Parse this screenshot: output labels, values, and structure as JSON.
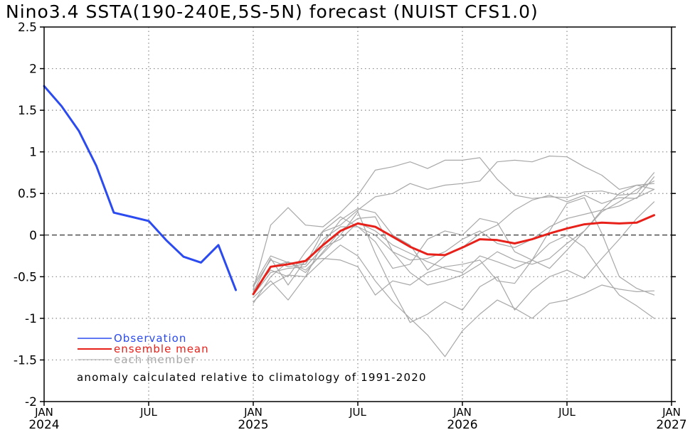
{
  "chart_data": {
    "type": "line",
    "title": "Nino3.4 SSTA(190-240E,5S-5N) forecast (NUIST CFS1.0)",
    "ylim": [
      -2,
      2.5
    ],
    "yticks": [
      -2,
      -1.5,
      -1,
      -0.5,
      0,
      0.5,
      1,
      1.5,
      2,
      2.5
    ],
    "ytick_labels": [
      "-2",
      "-1.5",
      "-1",
      "-0.5",
      "0",
      "0.5",
      "1",
      "1.5",
      "2",
      "2.5"
    ],
    "xlim": [
      "2024-01",
      "2027-01"
    ],
    "xticks": [
      {
        "date": "2024-01",
        "month": "JAN",
        "year": "2024"
      },
      {
        "date": "2024-07",
        "month": "JUL",
        "year": ""
      },
      {
        "date": "2025-01",
        "month": "JAN",
        "year": "2025"
      },
      {
        "date": "2025-07",
        "month": "JUL",
        "year": ""
      },
      {
        "date": "2026-01",
        "month": "JAN",
        "year": "2026"
      },
      {
        "date": "2026-07",
        "month": "JUL",
        "year": ""
      },
      {
        "date": "2027-01",
        "month": "JAN",
        "year": "2027"
      }
    ],
    "grid": true,
    "zero_line": true,
    "legend_position": "bottom-left",
    "annotation": "anomaly calculated relative to climatology of 1991-2020",
    "observation": {
      "name": "Observation",
      "color": "#2b4bf0",
      "x": [
        "2024-01",
        "2024-02",
        "2024-03",
        "2024-04",
        "2024-05",
        "2024-06",
        "2024-07",
        "2024-08",
        "2024-09",
        "2024-10",
        "2024-11",
        "2024-12"
      ],
      "values": [
        1.79,
        1.55,
        1.25,
        0.83,
        0.27,
        0.22,
        0.17,
        -0.06,
        -0.26,
        -0.33,
        -0.12,
        -0.66
      ]
    },
    "ensemble_mean": {
      "name": "ensemble mean",
      "color": "#e8201a",
      "x": [
        "2025-01",
        "2025-02",
        "2025-03",
        "2025-04",
        "2025-05",
        "2025-06",
        "2025-07",
        "2025-08",
        "2025-09",
        "2025-10",
        "2025-11",
        "2025-12",
        "2026-01",
        "2026-02",
        "2026-03",
        "2026-04",
        "2026-05",
        "2026-06",
        "2026-07",
        "2026-08",
        "2026-09",
        "2026-10",
        "2026-11",
        "2026-12"
      ],
      "values": [
        -0.71,
        -0.38,
        -0.35,
        -0.31,
        -0.12,
        0.05,
        0.14,
        0.1,
        -0.02,
        -0.14,
        -0.23,
        -0.24,
        -0.15,
        -0.05,
        -0.06,
        -0.1,
        -0.05,
        0.02,
        0.08,
        0.13,
        0.15,
        0.14,
        0.15,
        0.24
      ]
    },
    "members": {
      "name": "each member",
      "color": "#a8a8a8",
      "x": [
        "2025-01",
        "2025-02",
        "2025-03",
        "2025-04",
        "2025-05",
        "2025-06",
        "2025-07",
        "2025-08",
        "2025-09",
        "2025-10",
        "2025-11",
        "2025-12",
        "2026-01",
        "2026-02",
        "2026-03",
        "2026-04",
        "2026-05",
        "2026-06",
        "2026-07",
        "2026-08",
        "2026-09",
        "2026-10",
        "2026-11",
        "2026-12"
      ],
      "series": [
        [
          -0.65,
          0.12,
          0.33,
          0.12,
          0.1,
          0.27,
          0.48,
          0.78,
          0.82,
          0.88,
          0.8,
          0.9,
          0.9,
          0.93,
          0.67,
          0.48,
          0.44,
          0.46,
          0.45,
          0.52,
          0.53,
          0.48,
          0.5,
          0.75
        ],
        [
          -0.6,
          -0.25,
          -0.33,
          -0.35,
          0.04,
          0.12,
          0.3,
          0.46,
          0.5,
          0.62,
          0.55,
          0.6,
          0.62,
          0.65,
          0.88,
          0.9,
          0.88,
          0.95,
          0.94,
          0.82,
          0.72,
          0.55,
          0.6,
          0.62
        ],
        [
          -0.8,
          -0.6,
          -0.48,
          -0.5,
          -0.1,
          0.18,
          0.32,
          0.27,
          0.0,
          -0.12,
          -0.42,
          -0.25,
          -0.15,
          0.02,
          0.12,
          0.3,
          0.42,
          0.48,
          0.4,
          0.48,
          0.38,
          0.45,
          0.44,
          0.7
        ],
        [
          -0.7,
          -0.38,
          -0.32,
          -0.42,
          -0.22,
          0.0,
          0.28,
          -0.22,
          -0.66,
          -1.05,
          -0.95,
          -0.8,
          -0.9,
          -0.62,
          -0.5,
          -0.9,
          -0.66,
          -0.5,
          -0.42,
          -0.52,
          -0.28,
          -0.05,
          0.2,
          0.4
        ],
        [
          -0.75,
          -0.55,
          -0.78,
          -0.5,
          -0.3,
          -0.12,
          -0.25,
          -0.55,
          -0.8,
          -1.0,
          -1.2,
          -1.46,
          -1.15,
          -0.95,
          -0.78,
          -0.88,
          -1.0,
          -0.82,
          -0.78,
          -0.7,
          -0.6,
          -0.65,
          -0.68,
          -0.67
        ],
        [
          -0.82,
          -0.5,
          -0.32,
          -0.45,
          -0.2,
          0.05,
          0.2,
          0.22,
          -0.2,
          -0.45,
          -0.6,
          -0.55,
          -0.48,
          -0.35,
          -0.2,
          -0.3,
          -0.35,
          -0.28,
          -0.1,
          0.05,
          0.28,
          0.4,
          0.55,
          0.65
        ],
        [
          -0.68,
          -0.28,
          -0.6,
          -0.3,
          -0.28,
          -0.3,
          -0.38,
          -0.72,
          -0.55,
          -0.6,
          -0.45,
          -0.38,
          -0.35,
          -0.3,
          -0.55,
          -0.58,
          -0.3,
          -0.4,
          -0.18,
          0.05,
          0.3,
          0.5,
          0.6,
          0.55
        ],
        [
          -0.62,
          -0.3,
          -0.38,
          -0.35,
          -0.05,
          0.1,
          0.1,
          -0.08,
          -0.4,
          -0.35,
          -0.05,
          0.05,
          0.0,
          0.2,
          0.15,
          -0.2,
          -0.3,
          0.05,
          0.38,
          0.45,
          0.02,
          -0.5,
          -0.64,
          -0.72
        ],
        [
          -0.72,
          -0.45,
          -0.4,
          -0.38,
          -0.15,
          -0.05,
          0.15,
          0.05,
          -0.12,
          -0.22,
          -0.32,
          -0.4,
          -0.45,
          -0.25,
          -0.32,
          -0.4,
          -0.3,
          -0.1,
          0.0,
          -0.15,
          -0.45,
          -0.72,
          -0.85,
          -1.0
        ],
        [
          -0.66,
          -0.42,
          -0.5,
          -0.2,
          0.05,
          0.22,
          0.1,
          0.0,
          -0.2,
          -0.3,
          -0.28,
          -0.2,
          -0.05,
          0.05,
          -0.1,
          -0.15,
          -0.05,
          0.1,
          0.2,
          0.25,
          0.3,
          0.35,
          0.45,
          0.55
        ]
      ]
    }
  }
}
